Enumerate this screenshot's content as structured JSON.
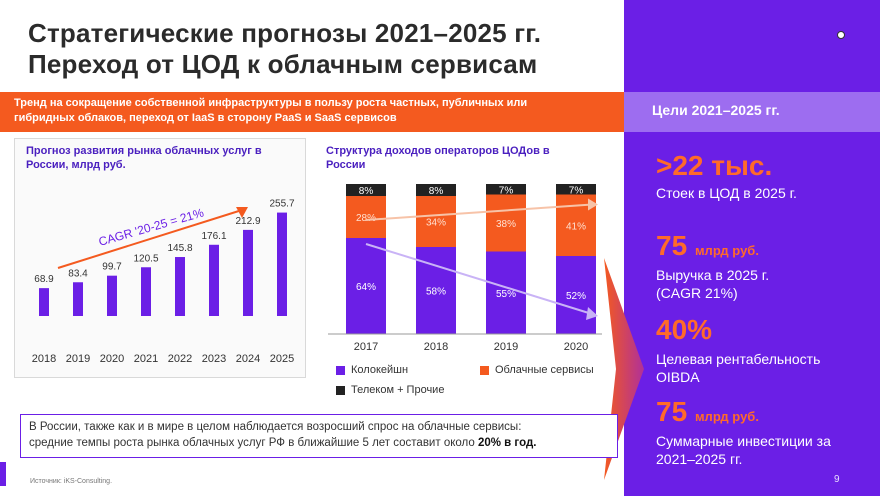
{
  "title_line1": "Стратегические прогнозы 2021–2025 гг.",
  "title_line2": "Переход от ЦОД к облачным сервисам",
  "banner_line1": "Тренд на сокращение собственной инфраструктуры в пользу роста частных, публичных или",
  "banner_line2": "гибридных облаков, переход от IaaS в сторону PaaS и SaaS сервисов",
  "goals_title": "Цели 2021–2025 гг.",
  "goals": [
    {
      "big": ">22 тыс.",
      "unit": "",
      "desc1": "Стоек в ЦОД в 2025 г.",
      "desc2": ""
    },
    {
      "big": "75",
      "unit": "млрд руб.",
      "desc1": "Выручка в 2025 г.",
      "desc2": "(CAGR 21%)"
    },
    {
      "big": "40%",
      "unit": "",
      "desc1": "Целевая рентабельность",
      "desc2": "OIBDA"
    },
    {
      "big": "75",
      "unit": "млрд руб.",
      "desc1": "Суммарные инвестиции за",
      "desc2": "2021–2025 гг."
    }
  ],
  "note_line1": "В России, также как и в мире в целом наблюдается возросший спрос на облачные сервисы:",
  "note_line2_pre": "средние темпы роста рынка облачных услуг РФ в ближайшие 5 лет составит около ",
  "note_line2_bold": "20% в год.",
  "source": "Источник: iKS-Consulting.",
  "page_number": "9",
  "colors": {
    "purple": "#6b1fe6",
    "orange": "#f45a1f",
    "black": "#222222"
  },
  "chart_data": [
    {
      "type": "bar",
      "title_line1": "Прогноз развития рынка облачных услуг в",
      "title_line2": "России, млрд руб.",
      "categories": [
        "2018",
        "2019",
        "2020",
        "2021",
        "2022",
        "2023",
        "2024",
        "2025"
      ],
      "values": [
        68.9,
        83.4,
        99.7,
        120.5,
        145.8,
        176.1,
        212.9,
        255.7
      ],
      "value_labels": [
        "68.9",
        "83.4",
        "99.7",
        "120.5",
        "145.8",
        "176.1",
        "212.9",
        "255.7"
      ],
      "annotation": "CAGR '20-25 = 21%",
      "ylim": [
        0,
        290
      ]
    },
    {
      "type": "bar",
      "stacked": true,
      "title_line1": "Структура доходов операторов ЦОДов в",
      "title_line2": "России",
      "categories": [
        "2017",
        "2018",
        "2019",
        "2020"
      ],
      "series": [
        {
          "name": "Колокейшн",
          "values": [
            64,
            58,
            55,
            52
          ],
          "labels": [
            "64%",
            "58%",
            "55%",
            "52%"
          ],
          "color": "#6b1fe6"
        },
        {
          "name": "Облачные сервисы",
          "values": [
            28,
            34,
            38,
            41
          ],
          "labels": [
            "28%",
            "34%",
            "38%",
            "41%"
          ],
          "color": "#f45a1f"
        },
        {
          "name": "Телеком + Прочие",
          "values": [
            8,
            8,
            7,
            7
          ],
          "labels": [
            "8%",
            "8%",
            "7%",
            "7%"
          ],
          "color": "#222222"
        }
      ],
      "ylim": [
        0,
        100
      ]
    }
  ]
}
